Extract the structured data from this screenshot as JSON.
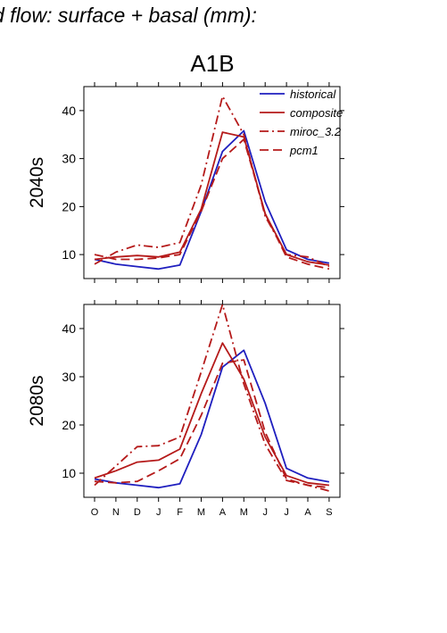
{
  "figure": {
    "title": "d flow: surface + basal (mm):",
    "scenario": "A1B"
  },
  "colors": {
    "historical": "#1f1fbf",
    "composite": "#b51a1a",
    "miroc_3.2": "#b51a1a",
    "pcm1": "#b51a1a"
  },
  "chart_data": [
    {
      "type": "line",
      "panel_label": "2040s",
      "x": [
        "O",
        "N",
        "D",
        "J",
        "F",
        "M",
        "A",
        "M",
        "J",
        "J",
        "A",
        "S"
      ],
      "ylim": [
        5,
        45
      ],
      "yticks": [
        10,
        20,
        30,
        40
      ],
      "legend_position": "top-right",
      "series": [
        {
          "name": "historical",
          "style": "solid",
          "color": "#1f1fbf",
          "values": [
            9.0,
            8.0,
            7.5,
            7.0,
            7.8,
            19.0,
            31.5,
            35.8,
            21.0,
            11.0,
            9.0,
            8.2
          ]
        },
        {
          "name": "composite",
          "style": "solid",
          "color": "#b51a1a",
          "values": [
            9.0,
            9.5,
            9.8,
            9.5,
            10.5,
            19.5,
            35.5,
            34.5,
            18.5,
            10.0,
            8.5,
            7.8
          ]
        },
        {
          "name": "miroc_3.2",
          "style": "dashdot",
          "color": "#b51a1a",
          "values": [
            8.0,
            10.5,
            12.0,
            11.5,
            12.5,
            24.5,
            43.0,
            35.0,
            18.0,
            10.0,
            9.5,
            7.5
          ]
        },
        {
          "name": "pcm1",
          "style": "dash",
          "color": "#b51a1a",
          "values": [
            10.0,
            9.0,
            9.0,
            9.3,
            10.0,
            19.0,
            30.0,
            34.0,
            18.5,
            9.5,
            8.0,
            7.0
          ]
        }
      ]
    },
    {
      "type": "line",
      "panel_label": "2080s",
      "x": [
        "O",
        "N",
        "D",
        "J",
        "F",
        "M",
        "A",
        "M",
        "J",
        "J",
        "A",
        "S"
      ],
      "ylim": [
        5,
        45
      ],
      "yticks": [
        10,
        20,
        30,
        40
      ],
      "series": [
        {
          "name": "historical",
          "style": "solid",
          "color": "#1f1fbf",
          "values": [
            8.8,
            8.0,
            7.5,
            7.0,
            7.8,
            18.0,
            32.0,
            35.5,
            24.5,
            11.0,
            9.0,
            8.2
          ]
        },
        {
          "name": "composite",
          "style": "solid",
          "color": "#b51a1a",
          "values": [
            9.0,
            10.5,
            12.3,
            12.7,
            15.0,
            26.5,
            37.0,
            29.5,
            17.5,
            9.5,
            8.0,
            7.5
          ]
        },
        {
          "name": "miroc_3.2",
          "style": "dashdot",
          "color": "#b51a1a",
          "values": [
            7.5,
            11.5,
            15.5,
            15.7,
            17.5,
            31.0,
            45.0,
            28.5,
            16.0,
            8.5,
            7.5,
            6.3
          ]
        },
        {
          "name": "pcm1",
          "style": "dash",
          "color": "#b51a1a",
          "values": [
            8.3,
            8.0,
            8.3,
            10.5,
            13.0,
            22.0,
            32.8,
            33.5,
            18.5,
            8.8,
            7.5,
            7.0
          ]
        }
      ]
    }
  ]
}
